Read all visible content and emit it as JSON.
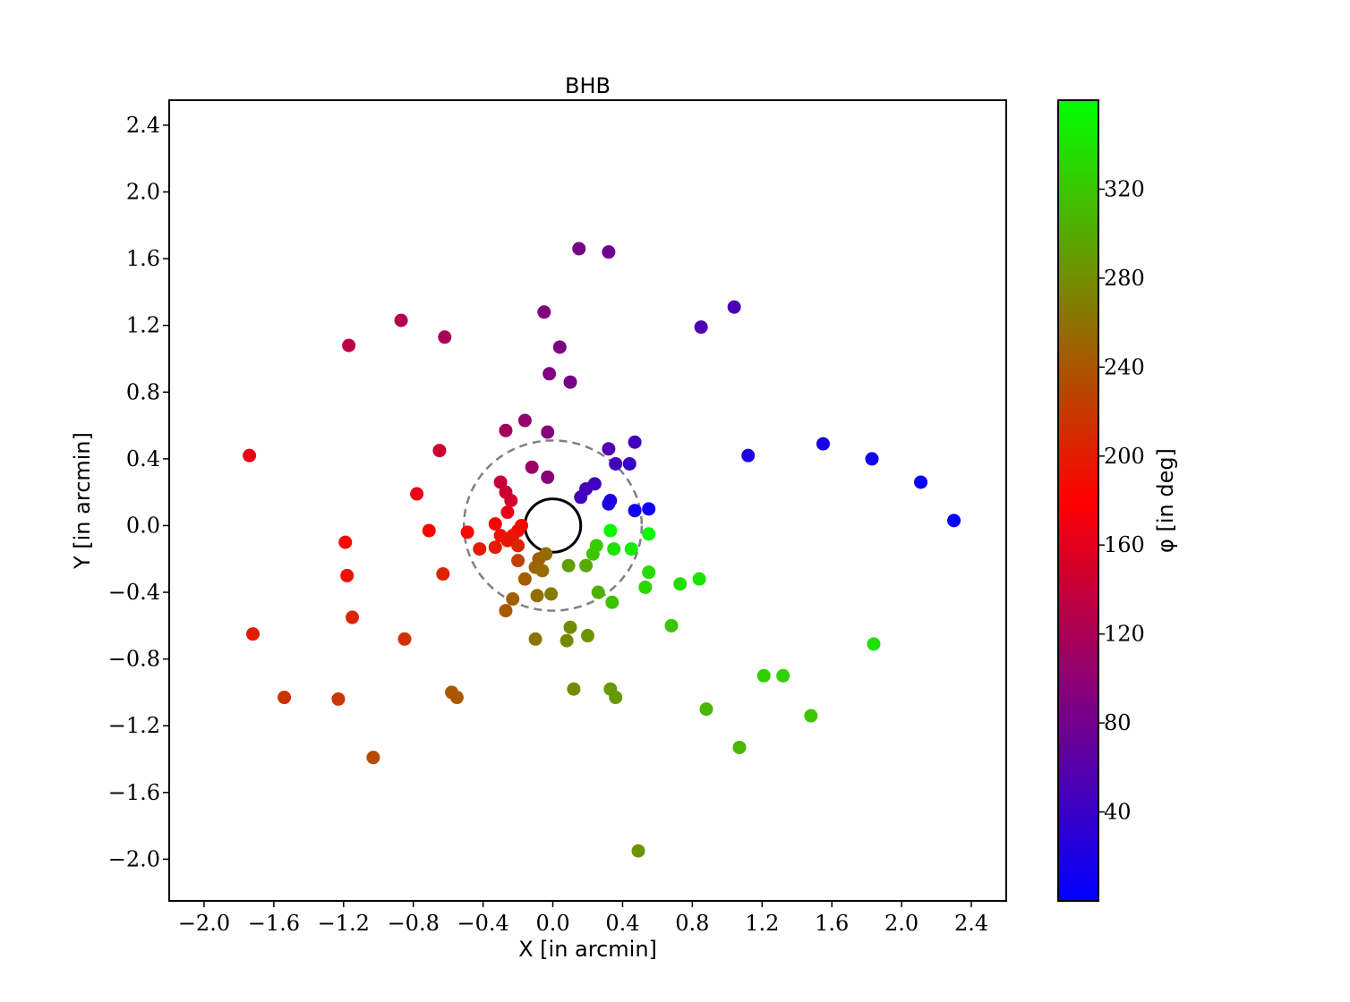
{
  "chart_data": {
    "type": "scatter",
    "title": "BHB",
    "xlabel": "X [in arcmin]",
    "ylabel": "Y [in arcmin]",
    "xlim": [
      -2.2,
      2.6
    ],
    "ylim": [
      -2.25,
      2.55
    ],
    "xticks": [
      -2.0,
      -1.6,
      -1.2,
      -0.8,
      -0.4,
      0.0,
      0.4,
      0.8,
      1.2,
      1.6,
      2.0,
      2.4
    ],
    "yticks": [
      -2.0,
      -1.6,
      -1.2,
      -0.8,
      -0.4,
      0.0,
      0.4,
      0.8,
      1.2,
      1.6,
      2.0,
      2.4
    ],
    "xtick_labels": [
      "−2.0",
      "−1.6",
      "−1.2",
      "−0.8",
      "−0.4",
      "0.0",
      "0.4",
      "0.8",
      "1.2",
      "1.6",
      "2.0",
      "2.4"
    ],
    "ytick_labels": [
      "−2.0",
      "−1.6",
      "−1.2",
      "−0.8",
      "−0.4",
      "0.0",
      "0.4",
      "0.8",
      "1.2",
      "1.6",
      "2.0",
      "2.4"
    ],
    "grid": false,
    "colorbar": {
      "label": "φ [in deg]",
      "range": [
        0,
        360
      ],
      "ticks": [
        40,
        80,
        120,
        160,
        200,
        240,
        280,
        320
      ],
      "tick_labels": [
        "40",
        "80",
        "120",
        "160",
        "200",
        "240",
        "280",
        "320"
      ],
      "colormap_stops": [
        {
          "value": 0,
          "color": "#0000ff"
        },
        {
          "value": 90,
          "color": "#800080"
        },
        {
          "value": 180,
          "color": "#ff0000"
        },
        {
          "value": 270,
          "color": "#808000"
        },
        {
          "value": 360,
          "color": "#00ff00"
        }
      ]
    },
    "circles": [
      {
        "center": [
          0,
          0
        ],
        "radius": 0.16,
        "style": "solid",
        "color": "#000000"
      },
      {
        "center": [
          0,
          0
        ],
        "radius": 0.51,
        "style": "dashed",
        "color": "#808080"
      }
    ],
    "points": [
      {
        "x": 0.15,
        "y": 1.66,
        "phi": 84
      },
      {
        "x": 0.32,
        "y": 1.64,
        "phi": 79
      },
      {
        "x": -0.87,
        "y": 1.23,
        "phi": 125
      },
      {
        "x": -1.17,
        "y": 1.08,
        "phi": 133
      },
      {
        "x": -0.62,
        "y": 1.13,
        "phi": 119
      },
      {
        "x": -0.05,
        "y": 1.28,
        "phi": 92
      },
      {
        "x": 0.04,
        "y": 1.07,
        "phi": 88
      },
      {
        "x": -0.02,
        "y": 0.91,
        "phi": 91
      },
      {
        "x": 0.1,
        "y": 0.86,
        "phi": 83
      },
      {
        "x": 1.04,
        "y": 1.31,
        "phi": 52
      },
      {
        "x": 0.85,
        "y": 1.19,
        "phi": 54
      },
      {
        "x": -0.16,
        "y": 0.63,
        "phi": 104
      },
      {
        "x": -0.27,
        "y": 0.57,
        "phi": 115
      },
      {
        "x": -0.03,
        "y": 0.56,
        "phi": 93
      },
      {
        "x": -0.65,
        "y": 0.45,
        "phi": 145
      },
      {
        "x": -1.74,
        "y": 0.42,
        "phi": 166
      },
      {
        "x": -0.12,
        "y": 0.35,
        "phi": 109
      },
      {
        "x": -0.03,
        "y": 0.29,
        "phi": 96
      },
      {
        "x": 0.32,
        "y": 0.46,
        "phi": 56
      },
      {
        "x": 0.47,
        "y": 0.5,
        "phi": 47
      },
      {
        "x": 0.36,
        "y": 0.37,
        "phi": 46
      },
      {
        "x": 0.44,
        "y": 0.37,
        "phi": 40
      },
      {
        "x": 0.24,
        "y": 0.25,
        "phi": 46
      },
      {
        "x": 0.19,
        "y": 0.22,
        "phi": 49
      },
      {
        "x": 0.16,
        "y": 0.17,
        "phi": 47
      },
      {
        "x": 0.33,
        "y": 0.15,
        "phi": 24
      },
      {
        "x": 0.32,
        "y": 0.13,
        "phi": 22
      },
      {
        "x": 0.47,
        "y": 0.09,
        "phi": 11
      },
      {
        "x": 0.55,
        "y": 0.1,
        "phi": 10
      },
      {
        "x": 1.12,
        "y": 0.42,
        "phi": 21
      },
      {
        "x": 1.55,
        "y": 0.49,
        "phi": 17
      },
      {
        "x": 1.83,
        "y": 0.4,
        "phi": 12
      },
      {
        "x": 2.11,
        "y": 0.26,
        "phi": 7
      },
      {
        "x": 2.3,
        "y": 0.03,
        "phi": 1
      },
      {
        "x": -0.3,
        "y": 0.26,
        "phi": 139
      },
      {
        "x": -0.27,
        "y": 0.2,
        "phi": 143
      },
      {
        "x": -0.24,
        "y": 0.15,
        "phi": 148
      },
      {
        "x": -0.26,
        "y": 0.08,
        "phi": 163
      },
      {
        "x": -0.78,
        "y": 0.19,
        "phi": 166
      },
      {
        "x": -0.33,
        "y": 0.01,
        "phi": 178
      },
      {
        "x": -0.18,
        "y": 0.0,
        "phi": 180
      },
      {
        "x": -0.71,
        "y": -0.03,
        "phi": 182
      },
      {
        "x": -0.49,
        "y": -0.04,
        "phi": 185
      },
      {
        "x": -0.2,
        "y": -0.03,
        "phi": 188
      },
      {
        "x": -0.23,
        "y": -0.06,
        "phi": 194
      },
      {
        "x": -0.3,
        "y": -0.06,
        "phi": 191
      },
      {
        "x": -0.26,
        "y": -0.09,
        "phi": 195
      },
      {
        "x": -1.19,
        "y": -0.1,
        "phi": 185
      },
      {
        "x": -0.33,
        "y": -0.13,
        "phi": 200
      },
      {
        "x": -0.42,
        "y": -0.14,
        "phi": 198
      },
      {
        "x": -0.2,
        "y": -0.12,
        "phi": 207
      },
      {
        "x": -1.18,
        "y": -0.3,
        "phi": 194
      },
      {
        "x": -0.63,
        "y": -0.29,
        "phi": 205
      },
      {
        "x": -0.2,
        "y": -0.21,
        "phi": 225
      },
      {
        "x": -1.72,
        "y": -0.65,
        "phi": 200
      },
      {
        "x": -1.15,
        "y": -0.55,
        "phi": 205
      },
      {
        "x": -0.85,
        "y": -0.68,
        "phi": 215
      },
      {
        "x": -1.54,
        "y": -1.03,
        "phi": 214
      },
      {
        "x": -1.23,
        "y": -1.04,
        "phi": 220
      },
      {
        "x": -0.58,
        "y": -1.0,
        "phi": 239
      },
      {
        "x": -0.55,
        "y": -1.03,
        "phi": 241
      },
      {
        "x": -1.03,
        "y": -1.39,
        "phi": 233
      },
      {
        "x": -0.08,
        "y": -0.2,
        "phi": 247
      },
      {
        "x": -0.04,
        "y": -0.17,
        "phi": 255
      },
      {
        "x": -0.1,
        "y": -0.25,
        "phi": 250
      },
      {
        "x": -0.06,
        "y": -0.27,
        "phi": 256
      },
      {
        "x": -0.16,
        "y": -0.32,
        "phi": 243
      },
      {
        "x": -0.23,
        "y": -0.44,
        "phi": 247
      },
      {
        "x": -0.27,
        "y": -0.51,
        "phi": 242
      },
      {
        "x": -0.09,
        "y": -0.42,
        "phi": 258
      },
      {
        "x": -0.01,
        "y": -0.41,
        "phi": 268
      },
      {
        "x": -0.1,
        "y": -0.68,
        "phi": 262
      },
      {
        "x": 0.08,
        "y": -0.69,
        "phi": 276
      },
      {
        "x": 0.1,
        "y": -0.61,
        "phi": 279
      },
      {
        "x": 0.09,
        "y": -0.24,
        "phi": 291
      },
      {
        "x": 0.19,
        "y": -0.24,
        "phi": 299
      },
      {
        "x": 0.2,
        "y": -0.66,
        "phi": 285
      },
      {
        "x": 0.26,
        "y": -0.4,
        "phi": 303
      },
      {
        "x": 0.12,
        "y": -0.98,
        "phi": 277
      },
      {
        "x": 0.33,
        "y": -0.98,
        "phi": 289
      },
      {
        "x": 0.36,
        "y": -1.03,
        "phi": 288
      },
      {
        "x": 0.49,
        "y": -1.95,
        "phi": 284
      },
      {
        "x": 0.34,
        "y": -0.46,
        "phi": 317
      },
      {
        "x": 0.23,
        "y": -0.17,
        "phi": 318
      },
      {
        "x": 0.25,
        "y": -0.12,
        "phi": 325
      },
      {
        "x": 0.35,
        "y": -0.14,
        "phi": 339
      },
      {
        "x": 0.33,
        "y": -0.03,
        "phi": 355
      },
      {
        "x": 0.45,
        "y": -0.14,
        "phi": 345
      },
      {
        "x": 0.55,
        "y": -0.05,
        "phi": 354
      },
      {
        "x": 0.55,
        "y": -0.28,
        "phi": 335
      },
      {
        "x": 0.53,
        "y": -0.37,
        "phi": 330
      },
      {
        "x": 0.73,
        "y": -0.35,
        "phi": 336
      },
      {
        "x": 0.84,
        "y": -0.32,
        "phi": 341
      },
      {
        "x": 0.68,
        "y": -0.6,
        "phi": 319
      },
      {
        "x": 1.21,
        "y": -0.9,
        "phi": 326
      },
      {
        "x": 1.32,
        "y": -0.9,
        "phi": 328
      },
      {
        "x": 1.84,
        "y": -0.71,
        "phi": 339
      },
      {
        "x": 1.48,
        "y": -1.14,
        "phi": 320
      },
      {
        "x": 0.88,
        "y": -1.1,
        "phi": 309
      },
      {
        "x": 1.07,
        "y": -1.33,
        "phi": 309
      }
    ]
  }
}
